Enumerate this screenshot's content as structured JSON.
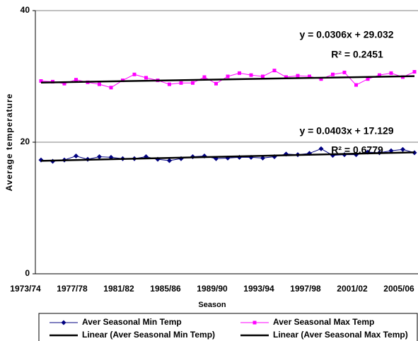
{
  "chart_data": {
    "type": "line",
    "x_label": "Season",
    "y_label": "Average temperature",
    "categories": [
      "1973/74",
      null,
      null,
      null,
      "1977/78",
      null,
      null,
      null,
      "1981/82",
      null,
      null,
      null,
      "1985/86",
      null,
      null,
      null,
      "1989/90",
      null,
      null,
      null,
      "1993/94",
      null,
      null,
      null,
      "1997/98",
      null,
      null,
      null,
      "2001/02",
      null,
      null,
      null,
      "2005/06"
    ],
    "series": [
      {
        "name": "Aver Seasonal Min Temp",
        "color": "#000080",
        "marker": "diamond",
        "values": [
          17.3,
          17.1,
          17.3,
          17.9,
          17.4,
          17.8,
          17.7,
          17.5,
          17.5,
          17.8,
          17.4,
          17.2,
          17.5,
          17.8,
          17.9,
          17.5,
          17.6,
          17.7,
          17.7,
          17.6,
          17.8,
          18.2,
          18.1,
          18.3,
          19.0,
          18.0,
          18.1,
          18.1,
          18.5,
          18.4,
          18.7,
          18.9,
          18.4
        ]
      },
      {
        "name": "Aver Seasonal Max Temp",
        "color": "#ff00ff",
        "marker": "square",
        "values": [
          29.3,
          29.2,
          28.9,
          29.5,
          29.1,
          28.8,
          28.3,
          29.4,
          30.3,
          29.8,
          29.4,
          28.8,
          29.0,
          29.0,
          29.9,
          28.9,
          30.0,
          30.5,
          30.2,
          30.0,
          30.9,
          29.9,
          30.1,
          30.0,
          29.6,
          30.3,
          30.6,
          28.7,
          29.6,
          30.2,
          30.5,
          29.9,
          30.7
        ]
      }
    ],
    "trendlines": [
      {
        "name": "Linear (Aver Seasonal Min Temp)",
        "color": "#000000",
        "slope": 0.0403,
        "intercept": 17.129,
        "equation": "y = 0.0403x + 17.129",
        "r_squared": "R² = 0.6779"
      },
      {
        "name": "Linear (Aver Seasonal Max Temp)",
        "color": "#000000",
        "slope": 0.0306,
        "intercept": 29.032,
        "equation": "y = 0.0306x + 29.032",
        "r_squared": "R² = 0.2451"
      }
    ],
    "ylim": [
      0,
      40
    ],
    "yticks": [
      0,
      20,
      40
    ],
    "grid": true
  }
}
